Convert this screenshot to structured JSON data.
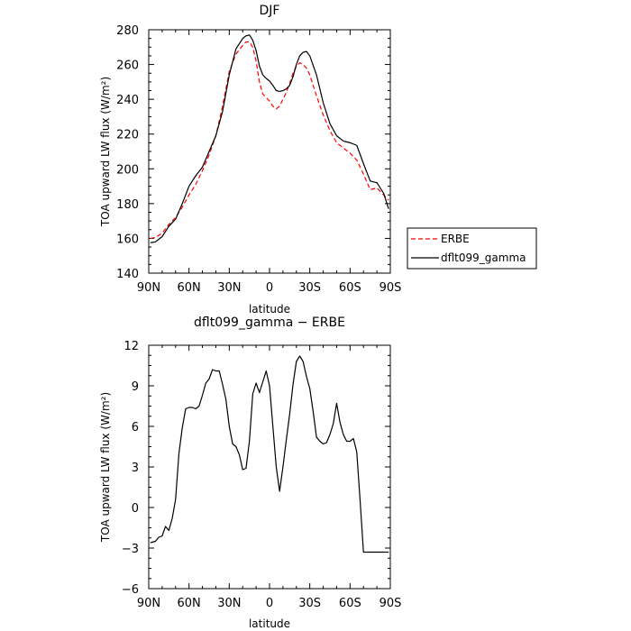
{
  "chart_data": [
    {
      "type": "line",
      "title": "DJF",
      "xlabel": "latitude",
      "ylabel": "TOA upward LW flux (W/m²)",
      "xlim": [
        -90,
        90
      ],
      "ylim": [
        140,
        280
      ],
      "xticks": [
        -90,
        -60,
        -30,
        0,
        30,
        60,
        90
      ],
      "xtick_labels": [
        "90N",
        "60N",
        "30N",
        "0",
        "30S",
        "60S",
        "90S"
      ],
      "yticks": [
        140,
        160,
        180,
        200,
        220,
        240,
        260,
        280
      ],
      "ytick_labels": [
        "140",
        "160",
        "180",
        "200",
        "220",
        "240",
        "260",
        "280"
      ],
      "grid": false,
      "legend_position": "right",
      "series": [
        {
          "name": "ERBE",
          "color": "#ff0000",
          "style": "dashed",
          "x": [
            -88.75,
            -85,
            -80,
            -75,
            -70,
            -65,
            -60,
            -55,
            -50,
            -45,
            -40,
            -35,
            -30,
            -25,
            -20,
            -17.5,
            -15,
            -12.5,
            -10,
            -7.5,
            -5,
            -2.5,
            0,
            2.5,
            5,
            7.5,
            10,
            12.5,
            15,
            17.5,
            20,
            22.5,
            25,
            27.5,
            30,
            35,
            40,
            45,
            50,
            55,
            60,
            65,
            70,
            75,
            80,
            85,
            88.75
          ],
          "y": [
            160,
            160.5,
            163,
            168,
            172,
            178,
            185,
            191,
            199,
            208,
            219,
            236,
            256,
            266,
            271,
            273,
            273,
            270,
            262,
            250,
            243,
            241,
            239,
            236,
            234.5,
            236,
            240,
            244,
            249,
            255,
            259,
            261,
            260,
            258,
            254,
            242,
            231,
            222,
            215,
            212,
            209,
            205,
            197,
            188,
            189,
            185,
            182
          ]
        },
        {
          "name": "dflt099_gamma",
          "color": "#000000",
          "style": "solid",
          "x": [
            -88.75,
            -85,
            -80,
            -75,
            -70,
            -65,
            -60,
            -55,
            -50,
            -45,
            -40,
            -35,
            -30,
            -25,
            -20,
            -17.5,
            -15,
            -12.5,
            -10,
            -7.5,
            -5,
            -2.5,
            0,
            2.5,
            5,
            7.5,
            10,
            12.5,
            15,
            17.5,
            20,
            22.5,
            25,
            27.5,
            30,
            35,
            40,
            45,
            50,
            55,
            60,
            65,
            70,
            75,
            80,
            85,
            88.75
          ],
          "y": [
            157.5,
            158,
            161,
            167,
            171,
            180,
            190,
            196,
            201,
            210,
            219,
            233,
            254,
            269,
            275,
            276.5,
            277,
            274,
            268,
            259,
            254,
            252,
            250.5,
            248,
            245,
            244.5,
            245,
            246,
            248,
            253,
            260,
            265,
            267,
            267.5,
            265,
            254,
            238,
            226,
            219,
            216,
            215,
            213.5,
            203,
            193,
            192,
            186,
            177
          ]
        }
      ]
    },
    {
      "type": "line",
      "title": "dflt099_gamma − ERBE",
      "xlabel": "latitude",
      "ylabel": "TOA upward LW flux (W/m²)",
      "xlim": [
        -90,
        90
      ],
      "ylim": [
        -6,
        12
      ],
      "xticks": [
        -90,
        -60,
        -30,
        0,
        30,
        60,
        90
      ],
      "xtick_labels": [
        "90N",
        "60N",
        "30N",
        "0",
        "30S",
        "60S",
        "90S"
      ],
      "yticks": [
        -6,
        -3,
        0,
        3,
        6,
        9,
        12
      ],
      "ytick_labels": [
        "−6",
        "−3",
        "0",
        "3",
        "6",
        "9",
        "12"
      ],
      "grid": false,
      "series": [
        {
          "color": "#000000",
          "style": "solid",
          "x": [
            -88.75,
            -85,
            -82.5,
            -80,
            -77.5,
            -75,
            -72.5,
            -70,
            -67.5,
            -65,
            -62.5,
            -60,
            -57.5,
            -55,
            -52.5,
            -50,
            -47.5,
            -45,
            -42.5,
            -40,
            -37.5,
            -35,
            -32.5,
            -30,
            -27.5,
            -25,
            -22.5,
            -20,
            -17.5,
            -15,
            -12.5,
            -10,
            -7.5,
            -5,
            -2.5,
            0,
            2.5,
            5,
            7.5,
            10,
            12.5,
            15,
            17.5,
            20,
            22.5,
            25,
            27.5,
            30,
            32.5,
            35,
            37.5,
            40,
            42.5,
            45,
            47.5,
            50,
            52.5,
            55,
            57.5,
            60,
            62.5,
            65,
            67.5,
            70,
            72.5,
            75,
            77.5,
            80,
            82.5,
            85,
            87.5,
            88.75
          ],
          "y": [
            -2.6,
            -2.5,
            -2.2,
            -2.1,
            -1.4,
            -1.7,
            -0.8,
            0.6,
            4.0,
            5.9,
            7.3,
            7.4,
            7.4,
            7.3,
            7.5,
            8.3,
            9.2,
            9.5,
            10.2,
            10.1,
            10.1,
            9.1,
            8.0,
            6.0,
            4.7,
            4.5,
            3.9,
            2.8,
            2.9,
            4.9,
            8.4,
            9.2,
            8.5,
            9.3,
            10.1,
            9.0,
            6.0,
            3.0,
            1.2,
            3.0,
            5.0,
            6.9,
            9.1,
            10.8,
            11.2,
            10.8,
            9.7,
            8.8,
            7.1,
            5.2,
            4.9,
            4.7,
            4.8,
            5.4,
            6.2,
            7.7,
            6.3,
            5.4,
            4.9,
            4.9,
            5.1,
            4.1,
            0.5,
            -3.3,
            -3.3,
            -3.3,
            -3.3,
            -3.3,
            -3.3,
            -3.3,
            -3.3,
            -3.3
          ]
        }
      ]
    }
  ]
}
